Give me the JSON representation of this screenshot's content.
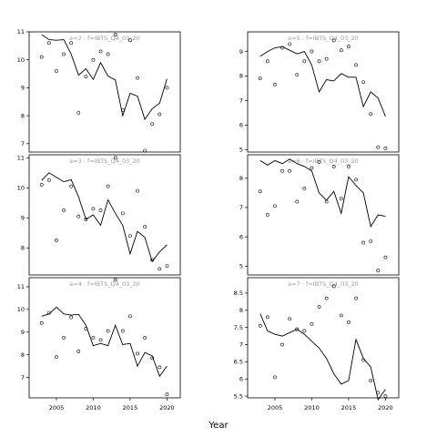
{
  "chart_data": {
    "type": "scatter",
    "xlabel": "Year",
    "panels": [
      {
        "label": "a=2 : f=IBTS_Q4_03_20",
        "xlim": [
          2001.3,
          2021.8
        ],
        "ylim": [
          6.7,
          11.0
        ],
        "yticks": [
          7,
          8,
          9,
          10,
          11
        ],
        "xticks": [],
        "observed": {
          "x": [
            2003,
            2004,
            2005,
            2006,
            2007,
            2008,
            2009,
            2010,
            2011,
            2012,
            2013,
            2014,
            2015,
            2016,
            2017,
            2018,
            2019,
            2020
          ],
          "y": [
            10.1,
            10.6,
            9.6,
            10.2,
            10.6,
            8.1,
            9.4,
            10.0,
            10.3,
            10.2,
            10.9,
            8.2,
            10.7,
            9.35,
            6.75,
            7.7,
            8.05,
            9.0
          ]
        },
        "fitted": {
          "x": [
            2003,
            2004,
            2005,
            2006,
            2007,
            2008,
            2009,
            2010,
            2011,
            2012,
            2013,
            2014,
            2015,
            2016,
            2017,
            2018,
            2019,
            2020
          ],
          "y": [
            10.9,
            10.72,
            10.7,
            10.72,
            10.2,
            9.45,
            9.68,
            9.3,
            9.9,
            9.42,
            9.28,
            8.0,
            8.8,
            8.7,
            7.87,
            8.25,
            8.45,
            9.32
          ]
        }
      },
      {
        "label": "a=5 : f=IBTS_Q4_03_20",
        "xlim": [
          2001.3,
          2021.8
        ],
        "ylim": [
          4.9,
          9.8
        ],
        "yticks": [
          5,
          6,
          7,
          8,
          9
        ],
        "xticks": [],
        "observed": {
          "x": [
            2003,
            2004,
            2005,
            2006,
            2007,
            2008,
            2009,
            2010,
            2011,
            2012,
            2013,
            2014,
            2015,
            2016,
            2017,
            2018,
            2019,
            2020
          ],
          "y": [
            7.9,
            8.6,
            7.65,
            9.15,
            9.3,
            8.05,
            8.6,
            9.0,
            8.6,
            8.7,
            9.45,
            9.05,
            9.2,
            8.45,
            7.75,
            6.45,
            5.1,
            5.05
          ]
        },
        "fitted": {
          "x": [
            2003,
            2004,
            2005,
            2006,
            2007,
            2008,
            2009,
            2010,
            2011,
            2012,
            2013,
            2014,
            2015,
            2016,
            2017,
            2018,
            2019,
            2020
          ],
          "y": [
            8.8,
            9.0,
            9.15,
            9.2,
            9.05,
            8.9,
            9.0,
            8.45,
            7.35,
            7.85,
            7.8,
            8.1,
            7.95,
            7.95,
            6.75,
            7.35,
            7.1,
            6.35
          ]
        }
      },
      {
        "label": "a=3 : f=IBTS_Q4_03_20",
        "xlim": [
          2001.3,
          2021.8
        ],
        "ylim": [
          7.1,
          11.1
        ],
        "yticks": [
          8,
          9,
          10,
          11
        ],
        "xticks": [],
        "observed": {
          "x": [
            2003,
            2004,
            2005,
            2006,
            2007,
            2008,
            2009,
            2010,
            2011,
            2012,
            2013,
            2014,
            2015,
            2016,
            2017,
            2018,
            2019,
            2020
          ],
          "y": [
            10.1,
            10.25,
            8.25,
            9.25,
            10.05,
            9.05,
            8.95,
            9.3,
            9.25,
            10.05,
            11.0,
            9.15,
            8.4,
            9.9,
            8.7,
            7.6,
            7.3,
            7.4
          ]
        },
        "fitted": {
          "x": [
            2003,
            2004,
            2005,
            2006,
            2007,
            2008,
            2009,
            2010,
            2011,
            2012,
            2013,
            2014,
            2015,
            2016,
            2017,
            2018,
            2019,
            2020
          ],
          "y": [
            10.25,
            10.5,
            10.35,
            10.2,
            10.27,
            9.7,
            8.95,
            9.1,
            8.75,
            9.6,
            9.15,
            8.75,
            7.8,
            8.55,
            8.35,
            7.55,
            7.87,
            8.1
          ]
        }
      },
      {
        "label": "a=6 : f=IBTS_Q4_03_20",
        "xlim": [
          2001.3,
          2021.8
        ],
        "ylim": [
          4.7,
          8.8
        ],
        "yticks": [
          5,
          6,
          7,
          8
        ],
        "xticks": [],
        "observed": {
          "x": [
            2003,
            2004,
            2005,
            2006,
            2007,
            2008,
            2009,
            2010,
            2011,
            2012,
            2013,
            2014,
            2015,
            2016,
            2017,
            2018,
            2019,
            2020
          ],
          "y": [
            7.55,
            6.75,
            7.05,
            8.25,
            8.25,
            7.2,
            7.65,
            8.35,
            8.55,
            7.2,
            8.4,
            7.3,
            8.4,
            7.95,
            5.8,
            5.85,
            4.85,
            5.3
          ]
        },
        "fitted": {
          "x": [
            2003,
            2004,
            2005,
            2006,
            2007,
            2008,
            2009,
            2010,
            2011,
            2012,
            2013,
            2014,
            2015,
            2016,
            2017,
            2018,
            2019,
            2020
          ],
          "y": [
            8.6,
            8.45,
            8.6,
            8.5,
            8.65,
            8.5,
            8.4,
            8.25,
            7.5,
            7.25,
            7.55,
            6.8,
            8.05,
            7.75,
            7.5,
            6.35,
            6.75,
            6.7
          ]
        }
      },
      {
        "label": "a=4 : f=IBTS_Q4_03_20",
        "xlim": [
          2001.3,
          2021.8
        ],
        "ylim": [
          6.1,
          11.4
        ],
        "yticks": [
          7,
          8,
          9,
          10,
          11
        ],
        "xticks": [
          2005,
          2010,
          2015,
          2020
        ],
        "observed": {
          "x": [
            2003,
            2004,
            2005,
            2006,
            2007,
            2008,
            2009,
            2010,
            2011,
            2012,
            2013,
            2014,
            2015,
            2016,
            2017,
            2018,
            2019,
            2020
          ],
          "y": [
            9.4,
            9.85,
            7.9,
            8.75,
            9.65,
            8.15,
            9.15,
            8.75,
            8.65,
            9.05,
            11.3,
            9.05,
            9.7,
            8.05,
            8.75,
            7.85,
            7.45,
            6.25
          ]
        },
        "fitted": {
          "x": [
            2003,
            2004,
            2005,
            2006,
            2007,
            2008,
            2009,
            2010,
            2011,
            2012,
            2013,
            2014,
            2015,
            2016,
            2017,
            2018,
            2019,
            2020
          ],
          "y": [
            9.7,
            9.8,
            10.1,
            9.8,
            9.75,
            9.78,
            9.3,
            8.4,
            8.5,
            8.4,
            9.3,
            8.45,
            8.5,
            7.5,
            8.1,
            7.95,
            7.05,
            7.5
          ]
        }
      },
      {
        "label": "a=7 : f=IBTS_Q4_03_20",
        "xlim": [
          2001.3,
          2021.8
        ],
        "ylim": [
          5.45,
          8.95
        ],
        "yticks": [
          5.5,
          6.0,
          6.5,
          7.0,
          7.5,
          8.0,
          8.5
        ],
        "xticks": [
          2005,
          2010,
          2015,
          2020
        ],
        "observed": {
          "x": [
            2003,
            2004,
            2005,
            2006,
            2007,
            2008,
            2009,
            2010,
            2011,
            2012,
            2013,
            2014,
            2015,
            2016,
            2017,
            2018,
            2019,
            2020
          ],
          "y": [
            7.55,
            7.8,
            6.05,
            7.0,
            7.75,
            7.45,
            7.4,
            7.6,
            8.1,
            8.35,
            8.7,
            7.85,
            7.65,
            8.35,
            6.55,
            5.95,
            5.6,
            5.5
          ]
        },
        "fitted": {
          "x": [
            2003,
            2004,
            2005,
            2006,
            2007,
            2008,
            2009,
            2010,
            2011,
            2012,
            2013,
            2014,
            2015,
            2016,
            2017,
            2018,
            2019,
            2020
          ],
          "y": [
            7.9,
            7.4,
            7.3,
            7.25,
            7.35,
            7.45,
            7.3,
            7.1,
            6.9,
            6.6,
            6.15,
            5.85,
            5.95,
            7.15,
            6.6,
            6.35,
            5.4,
            5.7
          ]
        }
      }
    ]
  }
}
